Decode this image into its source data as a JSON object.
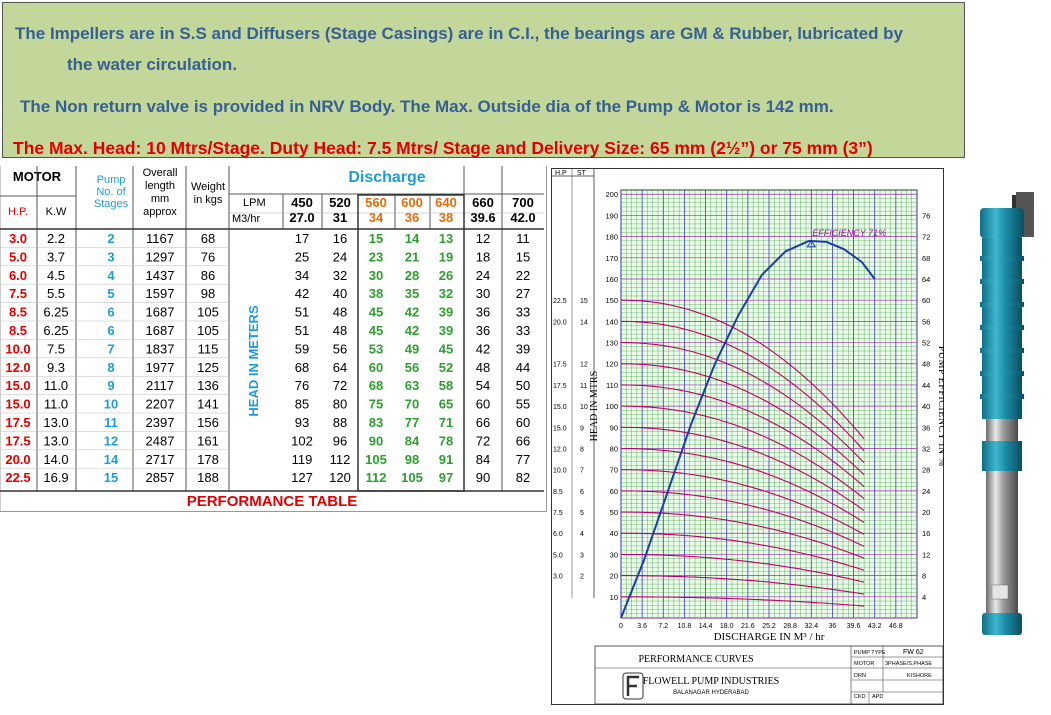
{
  "banner": {
    "line1a": "The Impellers are in S.S and Diffusers (Stage Casings) are in C.I., the bearings are GM & Rubber, lubricated by",
    "line1b": "the water circulation.",
    "line2": "The Non return valve is provided in NRV Body.  The Max.  Outside dia of the Pump & Motor is 142 mm.",
    "line3": "The Max. Head: 10 Mtrs/Stage. Duty Head: 7.5 Mtrs/ Stage and Delivery Size:  65 mm (2½”) or 75 mm (3”)"
  },
  "table": {
    "motor": "MOTOR",
    "hp": "H.P.",
    "kw": "K.W",
    "pump_stages": [
      "Pump",
      "No. of",
      "Stages"
    ],
    "overall_length": [
      "Overall",
      "length",
      "mm",
      "approx"
    ],
    "weight": [
      "Weight",
      "in kgs"
    ],
    "discharge": "Discharge",
    "lpm": "LPM",
    "m3hr": "M3/hr",
    "lpm_values": [
      "450",
      "520",
      "560",
      "600",
      "640",
      "660",
      "700"
    ],
    "m3_values": [
      "27.0",
      "31",
      "34",
      "36",
      "38",
      "39.6",
      "42.0"
    ],
    "head_label": "HEAD IN METERS",
    "footer": "PERFORMANCE TABLE",
    "rows": [
      [
        "3.0",
        "2.2",
        "2",
        "1167",
        "68",
        "17",
        "16",
        "15",
        "14",
        "13",
        "12",
        "11"
      ],
      [
        "5.0",
        "3.7",
        "3",
        "1297",
        "76",
        "25",
        "24",
        "23",
        "21",
        "19",
        "18",
        "15"
      ],
      [
        "6.0",
        "4.5",
        "4",
        "1437",
        "86",
        "34",
        "32",
        "30",
        "28",
        "26",
        "24",
        "22"
      ],
      [
        "7.5",
        "5.5",
        "5",
        "1597",
        "98",
        "42",
        "40",
        "38",
        "35",
        "32",
        "30",
        "27"
      ],
      [
        "8.5",
        "6.25",
        "6",
        "1687",
        "105",
        "51",
        "48",
        "45",
        "42",
        "39",
        "36",
        "33"
      ],
      [
        "8.5",
        "6.25",
        "6",
        "1687",
        "105",
        "51",
        "48",
        "45",
        "42",
        "39",
        "36",
        "33"
      ],
      [
        "10.0",
        "7.5",
        "7",
        "1837",
        "115",
        "59",
        "56",
        "53",
        "49",
        "45",
        "42",
        "39"
      ],
      [
        "12.0",
        "9.3",
        "8",
        "1977",
        "125",
        "68",
        "64",
        "60",
        "56",
        "52",
        "48",
        "44"
      ],
      [
        "15.0",
        "11.0",
        "9",
        "2117",
        "136",
        "76",
        "72",
        "68",
        "63",
        "58",
        "54",
        "50"
      ],
      [
        "15.0",
        "11.0",
        "10",
        "2207",
        "141",
        "85",
        "80",
        "75",
        "70",
        "65",
        "60",
        "55"
      ],
      [
        "17.5",
        "13.0",
        "11",
        "2397",
        "156",
        "93",
        "88",
        "83",
        "77",
        "71",
        "66",
        "60"
      ],
      [
        "17.5",
        "13.0",
        "12",
        "2487",
        "161",
        "102",
        "96",
        "90",
        "84",
        "78",
        "72",
        "66"
      ],
      [
        "20.0",
        "14.0",
        "14",
        "2717",
        "178",
        "119",
        "112",
        "105",
        "98",
        "91",
        "84",
        "77"
      ],
      [
        "22.5",
        "16.9",
        "15",
        "2857",
        "188",
        "127",
        "120",
        "112",
        "105",
        "97",
        "90",
        "82"
      ]
    ]
  },
  "graph": {
    "hp_header": "H.P",
    "st_header": "ST",
    "side_labels": [
      [
        "22.5",
        "15"
      ],
      [
        "20.0",
        "14"
      ],
      [
        "17.5",
        "12"
      ],
      [
        "17.5",
        "11"
      ],
      [
        "15.0",
        "10"
      ],
      [
        "15.0",
        "9"
      ],
      [
        "12.0",
        "8"
      ],
      [
        "10.0",
        "7"
      ],
      [
        "8.5",
        "6"
      ],
      [
        "7.5",
        "5"
      ],
      [
        "6.0",
        "4"
      ],
      [
        "5.0",
        "3"
      ],
      [
        "3.0",
        "2"
      ]
    ],
    "y_ticks": [
      "200",
      "190",
      "180",
      "170",
      "160",
      "150",
      "140",
      "130",
      "120",
      "110",
      "100",
      "90",
      "80",
      "70",
      "60",
      "50",
      "40",
      "30",
      "20",
      "10"
    ],
    "eff_ticks": [
      "76",
      "72",
      "68",
      "64",
      "60",
      "56",
      "52",
      "48",
      "44",
      "40",
      "36",
      "32",
      "28",
      "24",
      "20",
      "16",
      "12",
      "8",
      "4"
    ],
    "x_ticks": [
      "0",
      "3.6",
      "7.2",
      "10.8",
      "14.4",
      "18.0",
      "21.6",
      "25.2",
      "28.8",
      "32.4",
      "36",
      "39.6",
      "43.2",
      "46.8"
    ],
    "x_label": "DISCHARGE IN M³ / hr",
    "y_label": "HEAD   IN   MTRS",
    "eff_axis_label": "PUMP EFFICIENCY IN %",
    "efficiency_label": "EFFICIENCY 71%",
    "colors": {
      "grid_green": "#2e8b2e",
      "grid_purple": "#9933aa",
      "curve": "#c0006a",
      "eff_curve": "#1a3ea8"
    },
    "title_block": {
      "performance_curves": "PERFORMANCE CURVES",
      "company": "FLOWELL PUMP INDUSTRIES",
      "location": "BALANAGAR HYDERABAD",
      "pump_type_label": "PUMP TYPE",
      "pump_type_value": "FW 62",
      "motor_label": "MOTOR",
      "motor_value": "3PHASE/S.PHASE",
      "drn_label": "DRN",
      "drn_value": "KISHORE",
      "ckd_label": "CKD",
      "apd_label": "APD"
    }
  }
}
